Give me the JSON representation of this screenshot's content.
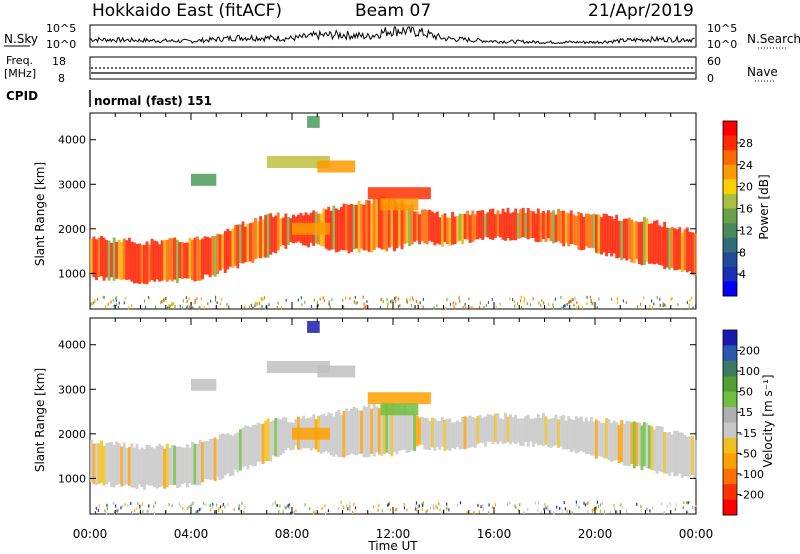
{
  "header": {
    "station": "Hokkaido East (fitACF)",
    "beam": "Beam 07",
    "date": "21/Apr/2019"
  },
  "noise_panel": {
    "left_label": "N.Sky",
    "right_label": "N.Search",
    "tick_top": "10^5",
    "tick_bottom": "10^0"
  },
  "freq_panel": {
    "left_label_1": "Freq.",
    "left_label_2": "[MHz]",
    "right_label": "Nave",
    "left_ticks": [
      "18",
      "8"
    ],
    "right_ticks": [
      "60",
      "0"
    ]
  },
  "cpid_panel": {
    "label": "CPID",
    "value": "normal (fast) 151"
  },
  "power_panel": {
    "ylabel": "Slant Range [km]",
    "colorbar_label": "Power [dB]",
    "colorbar_ticks": [
      "28",
      "24",
      "20",
      "16",
      "12",
      "8",
      "4"
    ],
    "colorbar_colors": [
      "#ff0000",
      "#ff2a00",
      "#ff6a00",
      "#ff9a00",
      "#ffd000",
      "#a8c040",
      "#6aa04a",
      "#4a8a5a",
      "#2f6e78",
      "#1f4c9a",
      "#1a2fb5",
      "#0000ff"
    ]
  },
  "velocity_panel": {
    "ylabel": "Slant Range [km]",
    "colorbar_label": "Velocity [m s⁻¹]",
    "colorbar_ticks": [
      "200",
      "100",
      "50",
      "15",
      "-15",
      "-50",
      "-100",
      "-200"
    ],
    "colorbar_colors": [
      "#1a1ab0",
      "#2a5ab0",
      "#3a7a60",
      "#50a030",
      "#70c040",
      "#b0b0b0",
      "#c8c8c8",
      "#f0c020",
      "#ffa000",
      "#ff7000",
      "#ff3000",
      "#ff0000"
    ]
  },
  "x_axis": {
    "title": "Time UT",
    "ticks": [
      "00:00",
      "04:00",
      "08:00",
      "12:00",
      "16:00",
      "20:00",
      "00:00"
    ]
  },
  "chart_data": {
    "type": "heatmap",
    "title": "Hokkaido East (fitACF) Beam 07 21/Apr/2019",
    "xlabel": "Time UT",
    "ylabel": "Slant Range [km]",
    "xlim_hours": [
      0,
      24
    ],
    "ylim_km": [
      200,
      4600
    ],
    "y_ticks": [
      1000,
      2000,
      3000,
      4000
    ],
    "grid": false,
    "power_colorbar_ticks_dB": [
      28,
      24,
      20,
      16,
      12,
      8,
      4
    ],
    "velocity_colorbar_ticks_mps": [
      200,
      100,
      50,
      15,
      -15,
      -50,
      -100,
      -200
    ],
    "echo_band": {
      "hours": [
        0,
        2,
        4,
        5,
        6,
        7,
        8,
        9,
        10,
        12,
        13,
        14,
        16,
        18,
        20,
        22,
        24
      ],
      "lower_km": [
        900,
        800,
        850,
        1000,
        1200,
        1400,
        1700,
        1600,
        1500,
        1550,
        1700,
        1650,
        1800,
        1750,
        1500,
        1200,
        1000
      ],
      "upper_km": [
        1800,
        1700,
        1750,
        1900,
        2100,
        2300,
        2300,
        2400,
        2500,
        2700,
        2400,
        2300,
        2400,
        2400,
        2300,
        2200,
        1900
      ]
    },
    "power_band_dB": 26,
    "velocity_band_mps": 0,
    "patches": [
      {
        "hour_start": 4.0,
        "hour_end": 5.0,
        "range_km": 3100,
        "power_dB": 14,
        "velocity_mps": 0
      },
      {
        "hour_start": 7.0,
        "hour_end": 9.5,
        "range_km": 3500,
        "power_dB": 18,
        "velocity_mps": 0
      },
      {
        "hour_start": 9.0,
        "hour_end": 10.5,
        "range_km": 3400,
        "power_dB": 20,
        "velocity_mps": 0
      },
      {
        "hour_start": 11.0,
        "hour_end": 13.5,
        "range_km": 2800,
        "power_dB": 24,
        "velocity_mps": -60
      },
      {
        "hour_start": 11.5,
        "hour_end": 13.0,
        "range_km": 2550,
        "power_dB": 22,
        "velocity_mps": 40
      },
      {
        "hour_start": 8.6,
        "hour_end": 9.1,
        "range_km": 4400,
        "power_dB": 12,
        "velocity_mps": 200
      },
      {
        "hour_start": 8.0,
        "hour_end": 9.5,
        "range_km": 2000,
        "power_dB": 20,
        "velocity_mps": -40
      }
    ],
    "noise_profile_hours": [
      0,
      2,
      4,
      6,
      8,
      9,
      10,
      11,
      12,
      13,
      14,
      16,
      18,
      20,
      22,
      24
    ],
    "noise_profile_level": [
      0.35,
      0.3,
      0.25,
      0.45,
      0.4,
      0.55,
      0.6,
      0.5,
      0.85,
      0.75,
      0.4,
      0.25,
      0.2,
      0.2,
      0.35,
      0.35
    ]
  }
}
